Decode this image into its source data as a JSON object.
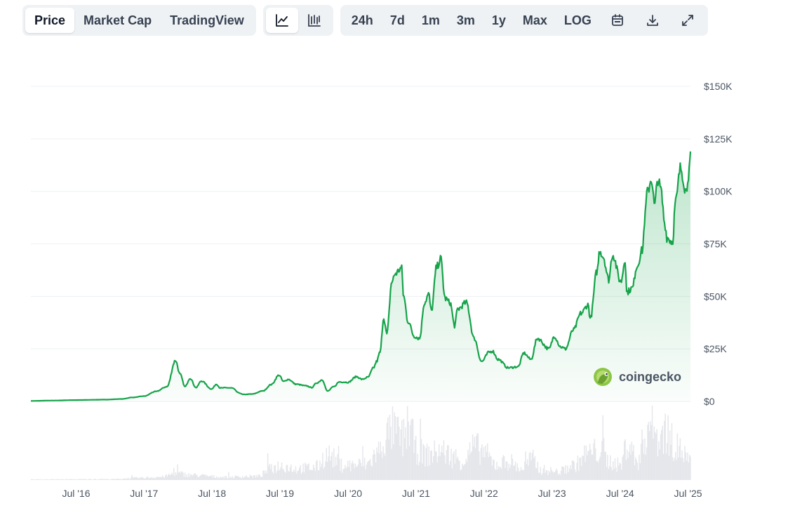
{
  "toolbar": {
    "metric_tabs": [
      "Price",
      "Market Cap",
      "TradingView"
    ],
    "active_metric": "Price",
    "chart_style_icons": [
      "line-chart-icon",
      "candlestick-chart-icon"
    ],
    "active_chart_style": "line-chart-icon",
    "ranges": [
      "24h",
      "7d",
      "1m",
      "3m",
      "1y",
      "Max",
      "LOG"
    ],
    "range_icons": [
      "calendar-icon",
      "download-icon",
      "expand-icon"
    ]
  },
  "watermark": "coingecko",
  "colors": {
    "line": "#16a34a",
    "area_top": "#16a34a",
    "grid": "#eef0f3",
    "volume": "#e5e7eb"
  },
  "chart_data": {
    "type": "area",
    "y_tick_labels": [
      "$0",
      "$25K",
      "$50K",
      "$75K",
      "$100K",
      "$125K",
      "$150K"
    ],
    "x_tick_labels": [
      "Jul '16",
      "Jul '17",
      "Jul '18",
      "Jul '19",
      "Jul '20",
      "Jul '21",
      "Jul '22",
      "Jul '23",
      "Jul '24",
      "Jul '25"
    ],
    "ylim": [
      0,
      150000
    ],
    "grid": true,
    "series": [
      {
        "x": [
          "2015-11-01",
          "2016-03-01",
          "2016-07-01",
          "2016-12-01",
          "2017-03-01",
          "2017-05-01",
          "2017-07-01",
          "2017-09-01",
          "2017-11-01",
          "2017-12-17",
          "2018-01-10",
          "2018-02-06",
          "2018-03-05",
          "2018-04-06",
          "2018-05-05",
          "2018-06-29",
          "2018-07-25",
          "2018-08-14",
          "2018-09-15",
          "2018-10-15",
          "2018-11-25",
          "2018-12-15",
          "2019-02-01",
          "2019-04-01",
          "2019-05-15",
          "2019-06-26",
          "2019-07-20",
          "2019-08-15",
          "2019-09-25",
          "2019-11-20",
          "2019-12-18",
          "2020-01-15",
          "2020-02-13",
          "2020-03-12",
          "2020-04-15",
          "2020-05-15",
          "2020-07-01",
          "2020-08-15",
          "2020-09-15",
          "2020-10-15",
          "2020-11-15",
          "2020-12-01",
          "2020-12-20",
          "2021-01-08",
          "2021-01-25",
          "2021-02-21",
          "2021-03-13",
          "2021-04-14",
          "2021-04-25",
          "2021-05-19",
          "2021-06-22",
          "2021-07-20",
          "2021-08-15",
          "2021-09-07",
          "2021-09-21",
          "2021-10-20",
          "2021-11-10",
          "2021-12-04",
          "2021-12-31",
          "2022-01-24",
          "2022-02-10",
          "2022-03-28",
          "2022-05-09",
          "2022-06-18",
          "2022-07-30",
          "2022-08-15",
          "2022-09-15",
          "2022-11-09",
          "2022-12-31",
          "2023-01-31",
          "2023-03-10",
          "2023-04-14",
          "2023-06-15",
          "2023-07-14",
          "2023-08-17",
          "2023-09-11",
          "2023-10-24",
          "2023-12-05",
          "2024-01-11",
          "2024-01-23",
          "2024-02-28",
          "2024-03-14",
          "2024-04-01",
          "2024-05-01",
          "2024-05-21",
          "2024-07-05",
          "2024-07-29",
          "2024-08-05",
          "2024-09-06",
          "2024-09-27",
          "2024-10-29",
          "2024-11-12",
          "2024-11-22",
          "2024-12-17",
          "2025-01-02",
          "2025-01-20",
          "2025-02-03",
          "2025-02-28",
          "2025-03-10",
          "2025-04-08",
          "2025-04-25",
          "2025-05-22",
          "2025-06-22",
          "2025-07-01",
          "2025-07-10",
          "2025-07-14"
        ],
        "y": [
          250,
          420,
          650,
          850,
          1150,
          1900,
          2500,
          4700,
          7000,
          19500,
          13000,
          7000,
          11000,
          6600,
          9700,
          5900,
          8200,
          6400,
          6500,
          6400,
          4000,
          3300,
          3500,
          5000,
          8000,
          12500,
          9500,
          10500,
          8200,
          7400,
          6600,
          8800,
          10300,
          4900,
          7000,
          9300,
          9100,
          11800,
          10500,
          11500,
          16000,
          19000,
          23500,
          40000,
          32000,
          57000,
          61000,
          63500,
          50000,
          38000,
          31000,
          30000,
          47000,
          51000,
          43000,
          64000,
          68000,
          49000,
          47000,
          36000,
          44000,
          47000,
          30000,
          19000,
          23500,
          24000,
          20000,
          16000,
          16500,
          23000,
          20000,
          30000,
          25000,
          31000,
          26000,
          25000,
          34000,
          42000,
          46000,
          39500,
          62000,
          72000,
          69000,
          58000,
          70000,
          57000,
          68000,
          52000,
          54000,
          64000,
          72000,
          88000,
          99000,
          106000,
          93000,
          106000,
          101000,
          84000,
          78000,
          76000,
          95000,
          111000,
          100000,
          108000,
          111000,
          119000
        ]
      }
    ],
    "volume": {
      "x": [
        "2015-11-01",
        "2017-01-01",
        "2017-06-01",
        "2017-10-01",
        "2017-12-20",
        "2018-03-01",
        "2018-09-01",
        "2019-03-01",
        "2019-05-15",
        "2019-07-01",
        "2019-10-01",
        "2020-01-01",
        "2020-03-12",
        "2020-06-01",
        "2020-10-01",
        "2020-12-20",
        "2021-01-10",
        "2021-02-20",
        "2021-04-20",
        "2021-05-20",
        "2021-07-01",
        "2021-09-01",
        "2021-11-10",
        "2022-01-20",
        "2022-03-01",
        "2022-05-12",
        "2022-06-18",
        "2022-09-01",
        "2022-11-09",
        "2023-01-15",
        "2023-03-13",
        "2023-05-01",
        "2023-08-01",
        "2023-10-24",
        "2024-01-11",
        "2024-03-05",
        "2024-05-01",
        "2024-07-01",
        "2024-08-05",
        "2024-10-01",
        "2024-11-12",
        "2024-12-05",
        "2025-01-20",
        "2025-02-28",
        "2025-04-07",
        "2025-05-22",
        "2025-07-01",
        "2025-07-14"
      ],
      "v": [
        0.3,
        0.4,
        1.0,
        1.5,
        3.2,
        2.4,
        1.4,
        1.8,
        5.5,
        7.0,
        5.5,
        6.0,
        12.0,
        7.0,
        7.5,
        14.0,
        20.0,
        24.0,
        20.0,
        27.0,
        14.0,
        12.0,
        14.0,
        11.0,
        9.0,
        16.0,
        14.0,
        7.5,
        9.0,
        5.5,
        10.0,
        5.0,
        4.0,
        7.0,
        13.0,
        14.0,
        9.0,
        7.0,
        18.0,
        9.0,
        22.0,
        28.0,
        20.0,
        24.0,
        18.0,
        14.0,
        10.0,
        8.0
      ]
    }
  }
}
